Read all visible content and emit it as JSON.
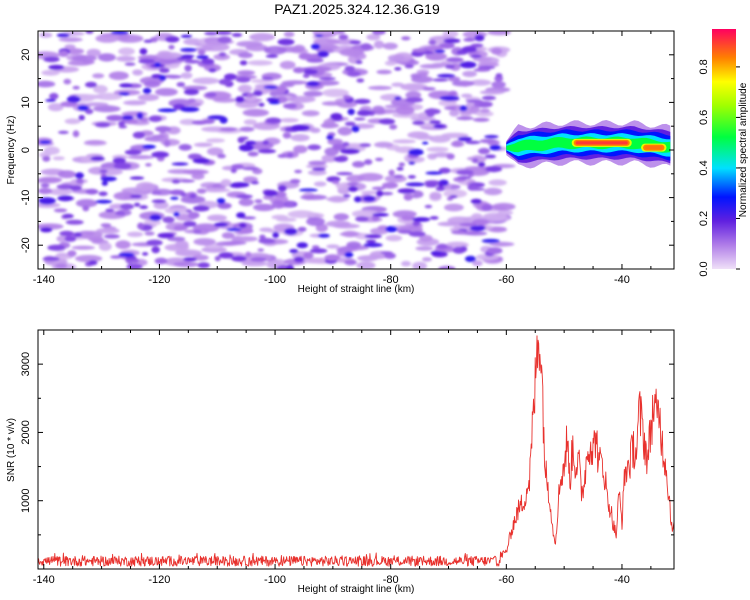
{
  "title": "PAZ1.2025.324.12.36.G19",
  "chart_data": [
    {
      "type": "heatmap",
      "xlabel": "Height of straight line (km)",
      "ylabel": "Frequency (Hz)",
      "xlim": [
        -141,
        -31
      ],
      "ylim": [
        -25,
        25
      ],
      "xticks": [
        -140,
        -120,
        -100,
        -80,
        -60,
        -40
      ],
      "yticks": [
        -20,
        -10,
        0,
        10,
        20
      ],
      "xtick_labels": [
        "-140",
        "-120",
        "-100",
        "-80",
        "-60",
        "-40"
      ],
      "ytick_labels": [
        "-20",
        "-10",
        "0",
        "10",
        "20"
      ],
      "noise_region": {
        "x_range": [
          -140,
          -60
        ],
        "y_range": [
          -25,
          25
        ],
        "typical_amplitude": 0.2
      },
      "signal": {
        "x_range": [
          -60,
          -31
        ],
        "frequency_hz": [
          0.5,
          1.5,
          1.5,
          0.5
        ],
        "frequency_x": [
          -60,
          -50,
          -38,
          -31
        ],
        "bright_segments": [
          {
            "x_from": -48,
            "x_to": -39,
            "frequency_hz": 1.5,
            "amplitude": 0.9
          },
          {
            "x_from": -36,
            "x_to": -33,
            "frequency_hz": 0.5,
            "amplitude": 0.85
          }
        ]
      },
      "colorbar": {
        "label": "Normalized spectral amplitude",
        "range": [
          0,
          0.95
        ],
        "ticks": [
          0.0,
          0.2,
          0.4,
          0.6,
          0.8
        ],
        "tick_labels": [
          "0.0",
          "0.2",
          "0.4",
          "0.6",
          "0.8"
        ]
      }
    },
    {
      "type": "line",
      "xlabel": "Height of straight line (km)",
      "ylabel": "SNR (10 * v/v)",
      "xlim": [
        -141,
        -31
      ],
      "ylim": [
        0,
        3500
      ],
      "xticks": [
        -140,
        -120,
        -100,
        -80,
        -60,
        -40
      ],
      "yticks": [
        1000,
        2000,
        3000
      ],
      "xtick_labels": [
        "-140",
        "-120",
        "-100",
        "-80",
        "-60",
        "-40"
      ],
      "ytick_labels": [
        "1000",
        "2000",
        "3000"
      ],
      "color": "#e8312d",
      "series": [
        {
          "name": "SNR",
          "x": [
            -141,
            -140,
            -130,
            -120,
            -110,
            -100,
            -90,
            -80,
            -70,
            -62,
            -60,
            -59,
            -58,
            -57,
            -56,
            -55.5,
            -55,
            -54.6,
            -54.3,
            -54,
            -53.7,
            -53.3,
            -53,
            -52.5,
            -52,
            -51.5,
            -51,
            -50.5,
            -50,
            -49.5,
            -49,
            -48.5,
            -48,
            -47.5,
            -47,
            -46.5,
            -46,
            -45.5,
            -45,
            -44.5,
            -44,
            -43.5,
            -43,
            -42.5,
            -42,
            -41.5,
            -41,
            -40.5,
            -40,
            -39.5,
            -39,
            -38.5,
            -38,
            -37.5,
            -37,
            -36.5,
            -36,
            -35.5,
            -35,
            -34.5,
            -34,
            -33.5,
            -33,
            -32.5,
            -32,
            -31.5,
            -31
          ],
          "y": [
            150,
            150,
            140,
            160,
            150,
            140,
            150,
            140,
            150,
            150,
            250,
            600,
            850,
            1000,
            1300,
            2000,
            2700,
            3300,
            3500,
            3100,
            2500,
            1500,
            1300,
            1100,
            600,
            400,
            1000,
            1400,
            1500,
            1900,
            1300,
            1800,
            1500,
            1600,
            1100,
            1300,
            1700,
            1900,
            1700,
            2000,
            1500,
            1600,
            1400,
            1000,
            900,
            650,
            500,
            1100,
            700,
            1400,
            1500,
            1600,
            1800,
            1700,
            2300,
            2100,
            1800,
            1600,
            2100,
            2400,
            2200,
            2300,
            1800,
            1600,
            1200,
            700,
            600
          ]
        }
      ]
    }
  ]
}
